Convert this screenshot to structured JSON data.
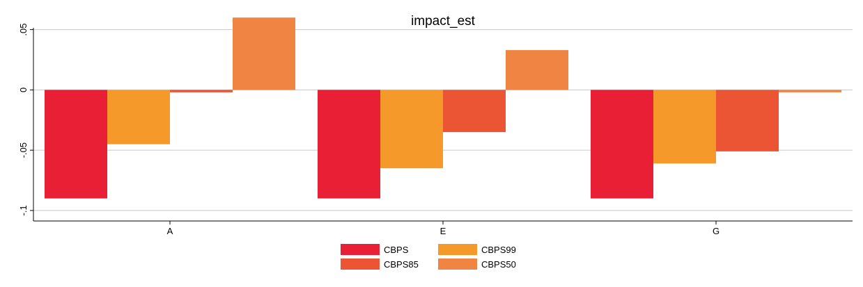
{
  "chart_data": {
    "type": "bar",
    "title": "impact_est",
    "xlabel": "",
    "ylabel": "",
    "categories": [
      "A",
      "E",
      "G"
    ],
    "series": [
      {
        "name": "CBPS",
        "color": "#e81f35",
        "values": [
          -0.09,
          -0.09,
          -0.09
        ]
      },
      {
        "name": "CBPS99",
        "color": "#f59a2a",
        "values": [
          -0.045,
          -0.065,
          -0.061
        ]
      },
      {
        "name": "CBPS85",
        "color": "#eb5534",
        "values": [
          -0.002,
          -0.035,
          -0.051
        ]
      },
      {
        "name": "CBPS50",
        "color": "#f08543",
        "values": [
          0.06,
          0.033,
          -0.002
        ]
      }
    ],
    "ylim": [
      -0.1,
      0.05
    ],
    "yticks": [
      {
        "value": 0.05,
        "label": ".05"
      },
      {
        "value": 0,
        "label": "0"
      },
      {
        "value": -0.05,
        "label": "-.05"
      },
      {
        "value": -0.1,
        "label": "-.1"
      }
    ],
    "grid": true,
    "legend_position": "bottom"
  }
}
